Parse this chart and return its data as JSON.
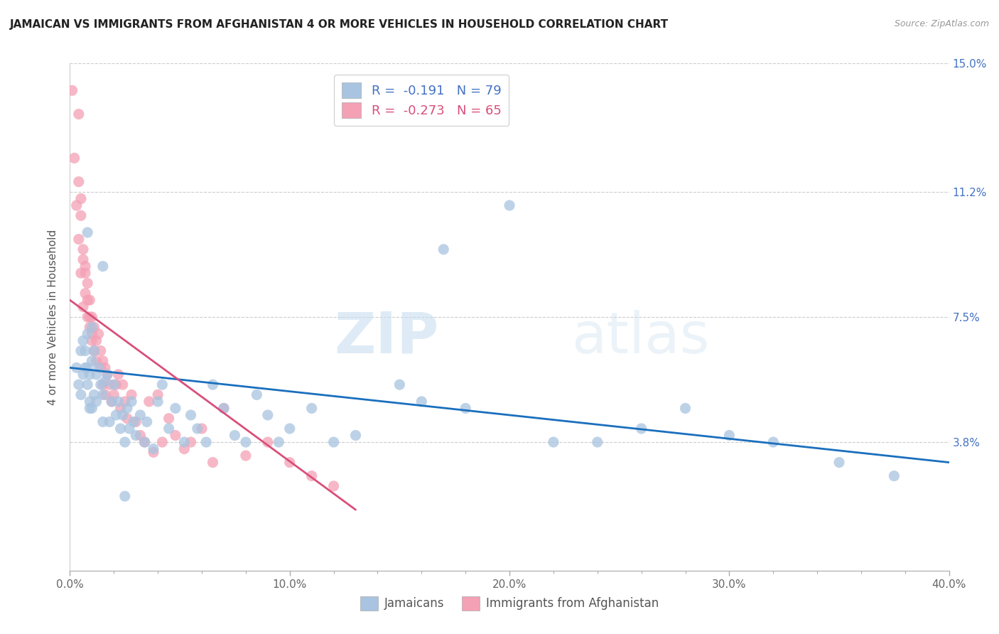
{
  "title": "JAMAICAN VS IMMIGRANTS FROM AFGHANISTAN 4 OR MORE VEHICLES IN HOUSEHOLD CORRELATION CHART",
  "source": "Source: ZipAtlas.com",
  "xlabel_ticks": [
    "0.0%",
    "10.0%",
    "20.0%",
    "30.0%",
    "40.0%"
  ],
  "xlabel_tick_vals": [
    0.0,
    0.1,
    0.2,
    0.3,
    0.4
  ],
  "right_yticks": [
    "3.8%",
    "7.5%",
    "11.2%",
    "15.0%"
  ],
  "right_ytick_vals": [
    0.038,
    0.075,
    0.112,
    0.15
  ],
  "xmin": 0.0,
  "xmax": 0.4,
  "ymin": 0.0,
  "ymax": 0.15,
  "jamaicans_color": "#a8c4e0",
  "afghanistan_color": "#f4a0b5",
  "jamaicans_line_color": "#1a6fbd",
  "afghanistan_line_color": "#d94f7a",
  "legend_label_1": "R =  -0.191   N = 79",
  "legend_label_2": "R =  -0.273   N = 65",
  "bottom_legend_1": "Jamaicans",
  "bottom_legend_2": "Immigrants from Afghanistan",
  "ylabel": "4 or more Vehicles in Household",
  "watermark_zip": "ZIP",
  "watermark_atlas": "atlas",
  "jamaicans_x": [
    0.003,
    0.004,
    0.005,
    0.005,
    0.006,
    0.006,
    0.007,
    0.007,
    0.008,
    0.008,
    0.008,
    0.009,
    0.009,
    0.009,
    0.01,
    0.01,
    0.01,
    0.011,
    0.011,
    0.012,
    0.012,
    0.013,
    0.014,
    0.015,
    0.015,
    0.016,
    0.017,
    0.018,
    0.019,
    0.02,
    0.021,
    0.022,
    0.023,
    0.024,
    0.025,
    0.026,
    0.027,
    0.028,
    0.029,
    0.03,
    0.032,
    0.034,
    0.035,
    0.038,
    0.04,
    0.042,
    0.045,
    0.048,
    0.052,
    0.055,
    0.058,
    0.062,
    0.065,
    0.07,
    0.075,
    0.08,
    0.085,
    0.09,
    0.095,
    0.1,
    0.11,
    0.12,
    0.13,
    0.15,
    0.16,
    0.17,
    0.18,
    0.2,
    0.22,
    0.24,
    0.26,
    0.28,
    0.3,
    0.32,
    0.35,
    0.375,
    0.008,
    0.015,
    0.025
  ],
  "jamaicans_y": [
    0.06,
    0.055,
    0.065,
    0.052,
    0.068,
    0.058,
    0.06,
    0.065,
    0.055,
    0.06,
    0.07,
    0.05,
    0.058,
    0.048,
    0.072,
    0.062,
    0.048,
    0.065,
    0.052,
    0.058,
    0.05,
    0.06,
    0.055,
    0.044,
    0.052,
    0.056,
    0.058,
    0.044,
    0.05,
    0.055,
    0.046,
    0.05,
    0.042,
    0.046,
    0.038,
    0.048,
    0.042,
    0.05,
    0.044,
    0.04,
    0.046,
    0.038,
    0.044,
    0.036,
    0.05,
    0.055,
    0.042,
    0.048,
    0.038,
    0.046,
    0.042,
    0.038,
    0.055,
    0.048,
    0.04,
    0.038,
    0.052,
    0.046,
    0.038,
    0.042,
    0.048,
    0.038,
    0.04,
    0.055,
    0.05,
    0.095,
    0.048,
    0.108,
    0.038,
    0.038,
    0.042,
    0.048,
    0.04,
    0.038,
    0.032,
    0.028,
    0.1,
    0.09,
    0.022
  ],
  "afghanistan_x": [
    0.001,
    0.002,
    0.003,
    0.004,
    0.004,
    0.005,
    0.005,
    0.006,
    0.006,
    0.007,
    0.007,
    0.008,
    0.008,
    0.009,
    0.009,
    0.01,
    0.01,
    0.011,
    0.011,
    0.012,
    0.012,
    0.013,
    0.014,
    0.014,
    0.015,
    0.015,
    0.016,
    0.016,
    0.017,
    0.018,
    0.019,
    0.02,
    0.021,
    0.022,
    0.023,
    0.024,
    0.025,
    0.026,
    0.028,
    0.03,
    0.032,
    0.034,
    0.036,
    0.038,
    0.04,
    0.042,
    0.045,
    0.048,
    0.052,
    0.055,
    0.06,
    0.065,
    0.07,
    0.08,
    0.09,
    0.1,
    0.11,
    0.12,
    0.004,
    0.005,
    0.006,
    0.007,
    0.008,
    0.009,
    0.01
  ],
  "afghanistan_y": [
    0.142,
    0.122,
    0.108,
    0.115,
    0.098,
    0.11,
    0.088,
    0.092,
    0.078,
    0.09,
    0.082,
    0.085,
    0.075,
    0.08,
    0.072,
    0.075,
    0.068,
    0.072,
    0.065,
    0.068,
    0.062,
    0.07,
    0.065,
    0.06,
    0.062,
    0.055,
    0.06,
    0.052,
    0.058,
    0.055,
    0.05,
    0.052,
    0.055,
    0.058,
    0.048,
    0.055,
    0.05,
    0.045,
    0.052,
    0.044,
    0.04,
    0.038,
    0.05,
    0.035,
    0.052,
    0.038,
    0.045,
    0.04,
    0.036,
    0.038,
    0.042,
    0.032,
    0.048,
    0.034,
    0.038,
    0.032,
    0.028,
    0.025,
    0.135,
    0.105,
    0.095,
    0.088,
    0.08,
    0.075,
    0.07
  ],
  "jamaicans_trend_x": [
    0.0,
    0.4
  ],
  "jamaicans_trend_y": [
    0.06,
    0.032
  ],
  "afghanistan_trend_x": [
    0.0,
    0.13
  ],
  "afghanistan_trend_y": [
    0.08,
    0.018
  ]
}
